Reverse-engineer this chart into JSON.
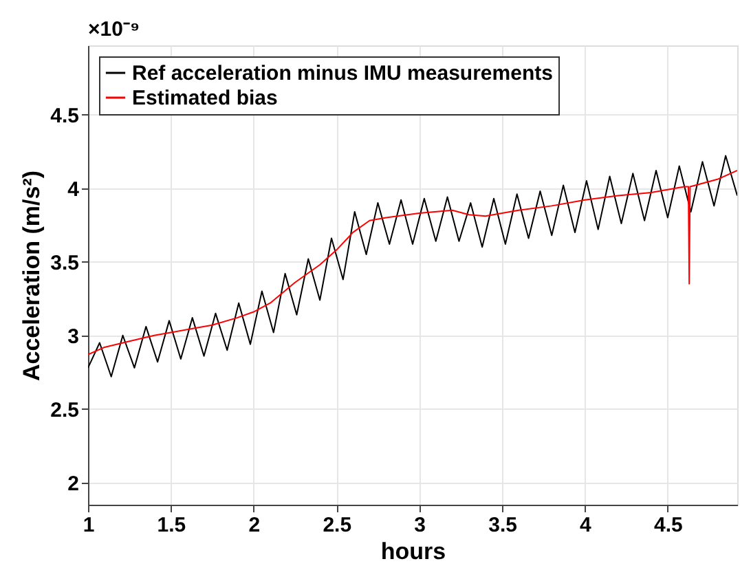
{
  "chart_data": {
    "type": "line",
    "xlabel": "hours",
    "ylabel": "Acceleration (m/s²)",
    "annotations": [
      "×10⁻⁹"
    ],
    "xlim": [
      1,
      4.92
    ],
    "ylim": [
      1.85,
      4.97
    ],
    "xticks": [
      1,
      1.5,
      2,
      2.5,
      3,
      3.5,
      4,
      4.5
    ],
    "yticks": [
      2,
      2.5,
      3,
      3.5,
      4,
      4.5
    ],
    "grid": true,
    "legend": "top left",
    "line_style": "solid",
    "series": [
      {
        "name": "Ref acceleration minus IMU measurements",
        "color": "#000000",
        "x": [
          1.0,
          1.07,
          1.14,
          1.21,
          1.28,
          1.35,
          1.42,
          1.49,
          1.56,
          1.63,
          1.7,
          1.77,
          1.84,
          1.91,
          1.98,
          2.05,
          2.12,
          2.19,
          2.26,
          2.33,
          2.4,
          2.47,
          2.54,
          2.61,
          2.68,
          2.75,
          2.82,
          2.89,
          2.96,
          3.03,
          3.1,
          3.17,
          3.24,
          3.31,
          3.38,
          3.45,
          3.52,
          3.59,
          3.66,
          3.73,
          3.8,
          3.87,
          3.94,
          4.01,
          4.08,
          4.15,
          4.22,
          4.29,
          4.36,
          4.43,
          4.5,
          4.57,
          4.64,
          4.71,
          4.78,
          4.85,
          4.92
        ],
        "values": [
          2.78,
          2.95,
          2.72,
          3.0,
          2.78,
          3.06,
          2.82,
          3.1,
          2.84,
          3.12,
          2.86,
          3.15,
          2.9,
          3.22,
          2.94,
          3.3,
          3.02,
          3.42,
          3.14,
          3.52,
          3.24,
          3.66,
          3.38,
          3.84,
          3.55,
          3.9,
          3.62,
          3.92,
          3.62,
          3.93,
          3.64,
          3.94,
          3.64,
          3.9,
          3.6,
          3.93,
          3.62,
          3.96,
          3.66,
          3.98,
          3.68,
          4.02,
          3.7,
          4.05,
          3.72,
          4.08,
          3.76,
          4.1,
          3.78,
          4.12,
          3.8,
          4.15,
          3.84,
          4.18,
          3.88,
          4.22,
          3.95
        ]
      },
      {
        "name": "Estimated bias",
        "color": "#ff0000",
        "x": [
          1.0,
          1.1,
          1.25,
          1.4,
          1.5,
          1.65,
          1.75,
          1.9,
          2.0,
          2.1,
          2.25,
          2.4,
          2.5,
          2.6,
          2.7,
          2.8,
          3.0,
          3.2,
          3.3,
          3.4,
          3.6,
          3.8,
          4.0,
          4.2,
          4.4,
          4.6,
          4.625,
          4.63,
          4.635,
          4.8,
          4.92
        ],
        "values": [
          2.87,
          2.92,
          2.96,
          3.0,
          3.02,
          3.05,
          3.07,
          3.12,
          3.16,
          3.22,
          3.36,
          3.48,
          3.58,
          3.7,
          3.78,
          3.8,
          3.83,
          3.85,
          3.82,
          3.81,
          3.85,
          3.88,
          3.92,
          3.95,
          3.97,
          4.01,
          4.01,
          3.35,
          4.01,
          4.06,
          4.12
        ]
      }
    ]
  }
}
